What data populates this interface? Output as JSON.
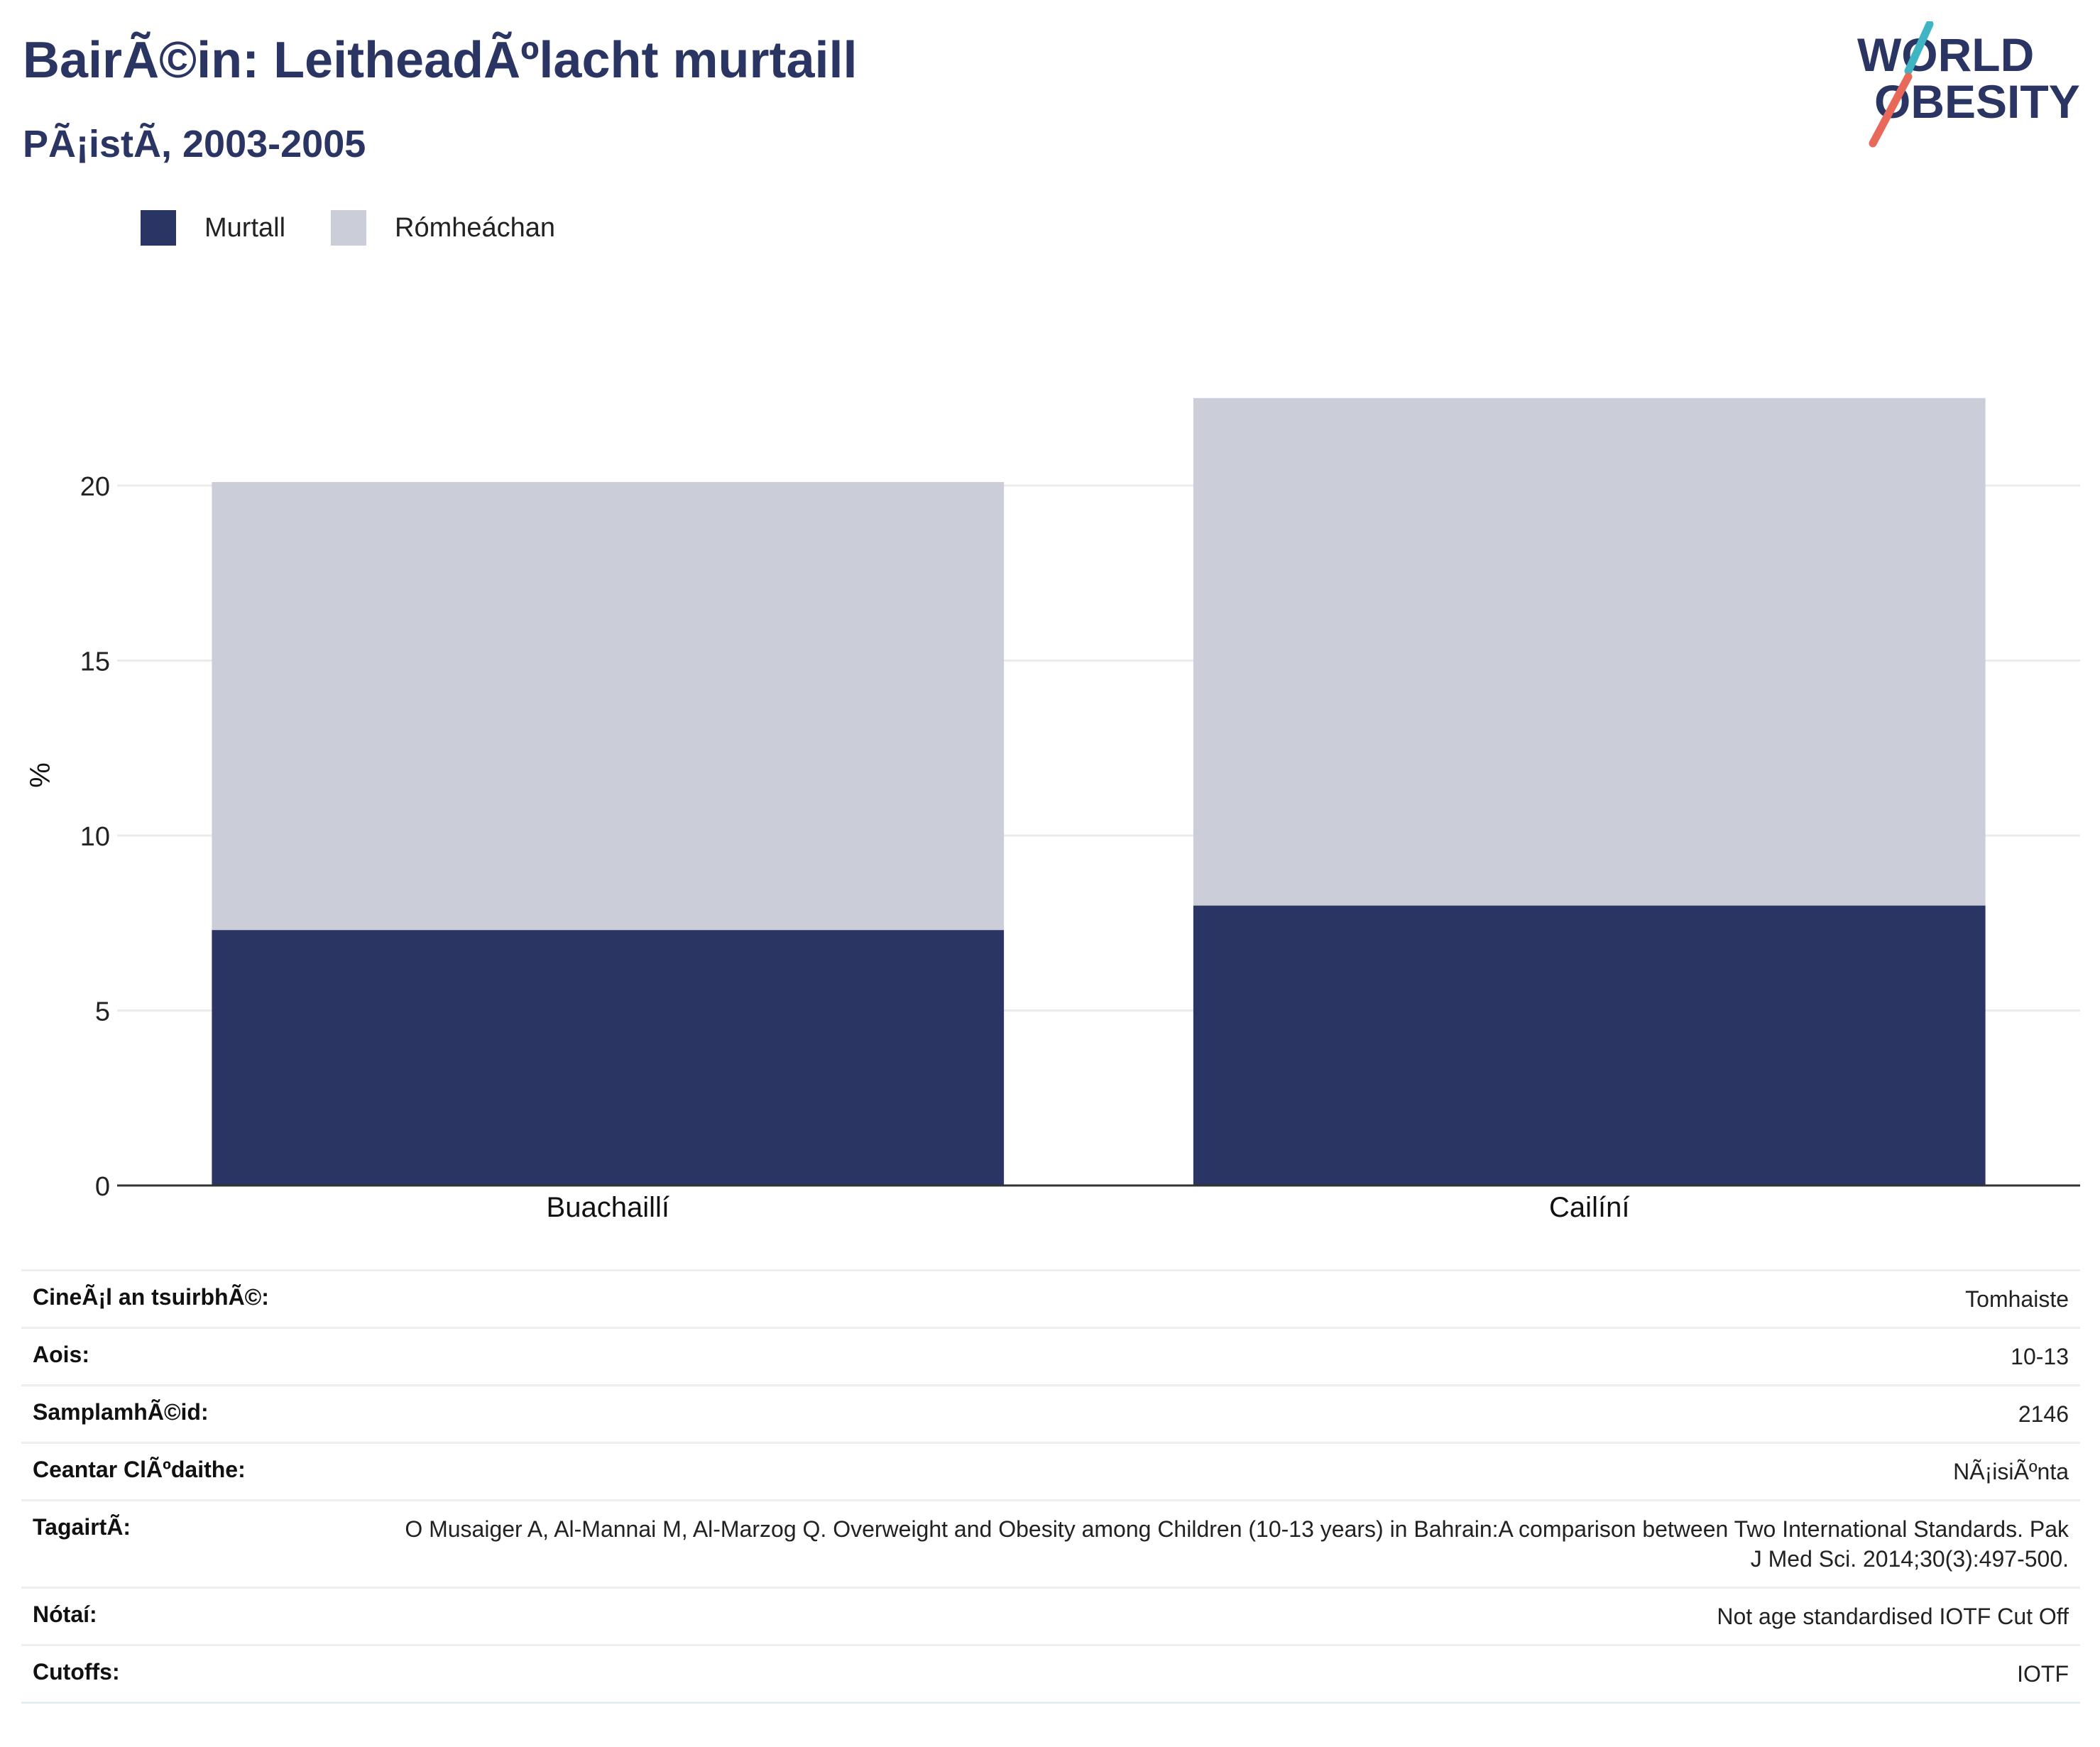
{
  "header": {
    "title": "BairÃ©in: LeitheadÃºlacht murtaill",
    "subtitle": "PÃ¡istÃ, 2003-2005"
  },
  "logo": {
    "line1": "WORLD",
    "line2": "OBESITY",
    "text_color": "#2b3563",
    "slash_top_color": "#3fb5c4",
    "slash_bottom_color": "#e8695a"
  },
  "legend": {
    "items": [
      {
        "label": "Murtall",
        "color": "#2b3563"
      },
      {
        "label": "Rómheáchan",
        "color": "#cbcdd8"
      }
    ]
  },
  "chart_data": {
    "type": "bar",
    "stacked": true,
    "categories": [
      "Buachaillí",
      "Cailíní"
    ],
    "series": [
      {
        "name": "Murtall",
        "color": "#2b3563",
        "values": [
          7.3,
          8.0
        ]
      },
      {
        "name": "Rómheáchan",
        "color": "#cbcdd8",
        "values": [
          12.8,
          14.5
        ]
      }
    ],
    "ylabel": "%",
    "yticks": [
      0,
      5,
      10,
      15,
      20
    ],
    "ylim": [
      0,
      24
    ],
    "grid": true,
    "legend_position": "top-left"
  },
  "info_rows": [
    {
      "key": "CineÃ¡l an tsuirbhÃ©:",
      "value": "Tomhaiste"
    },
    {
      "key": "Aois:",
      "value": "10-13"
    },
    {
      "key": "SamplamhÃ©id:",
      "value": "2146"
    },
    {
      "key": "Ceantar ClÃºdaithe:",
      "value": "NÃ¡isiÃºnta"
    },
    {
      "key": "TagairtÃ:",
      "value": "O Musaiger A, Al-Mannai M, Al-Marzog Q. Overweight and Obesity among Children (10-13 years) in Bahrain:A comparison between Two International Standards. Pak J Med Sci. 2014;30(3):497-500."
    },
    {
      "key": "Nótaí:",
      "value": "Not age standardised IOTF Cut Off"
    },
    {
      "key": "Cutoffs:",
      "value": "IOTF"
    }
  ]
}
